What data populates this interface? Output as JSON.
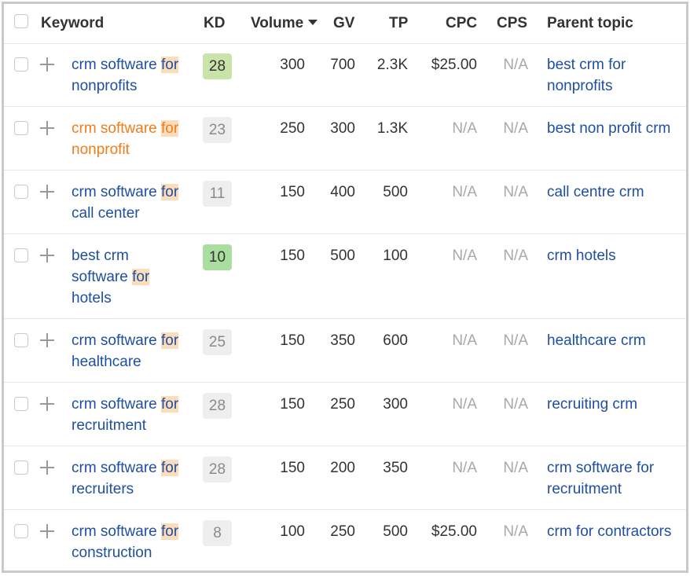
{
  "header": {
    "keyword": "Keyword",
    "kd": "KD",
    "volume": "Volume",
    "gv": "GV",
    "tp": "TP",
    "cpc": "CPC",
    "cps": "CPS",
    "parent_topic": "Parent topic"
  },
  "rows": [
    {
      "kw_pre": "crm software",
      "kw_hl": "for",
      "kw_post": "nonprofits",
      "kd": "28",
      "volume": "300",
      "gv": "700",
      "tp": "2.3K",
      "cpc": "$25.00",
      "cps": "N/A",
      "parent": "best crm for nonprofits"
    },
    {
      "kw_pre": "crm software",
      "kw_hl": "for",
      "kw_post": "nonprofit",
      "kd": "23",
      "volume": "250",
      "gv": "300",
      "tp": "1.3K",
      "cpc": "N/A",
      "cps": "N/A",
      "parent": "best non profit crm"
    },
    {
      "kw_pre": "crm software",
      "kw_hl": "for",
      "kw_post": "call center",
      "kd": "11",
      "volume": "150",
      "gv": "400",
      "tp": "500",
      "cpc": "N/A",
      "cps": "N/A",
      "parent": "call centre crm"
    },
    {
      "kw_pre": "best crm software",
      "kw_hl": "for",
      "kw_post": "hotels",
      "kd": "10",
      "volume": "150",
      "gv": "500",
      "tp": "100",
      "cpc": "N/A",
      "cps": "N/A",
      "parent": "crm hotels"
    },
    {
      "kw_pre": "crm software",
      "kw_hl": "for",
      "kw_post": "healthcare",
      "kd": "25",
      "volume": "150",
      "gv": "350",
      "tp": "600",
      "cpc": "N/A",
      "cps": "N/A",
      "parent": "healthcare crm"
    },
    {
      "kw_pre": "crm software",
      "kw_hl": "for",
      "kw_post": "recruitment",
      "kd": "28",
      "volume": "150",
      "gv": "250",
      "tp": "300",
      "cpc": "N/A",
      "cps": "N/A",
      "parent": "recruiting crm"
    },
    {
      "kw_pre": "crm software",
      "kw_hl": "for",
      "kw_post": "recruiters",
      "kd": "28",
      "volume": "150",
      "gv": "200",
      "tp": "350",
      "cpc": "N/A",
      "cps": "N/A",
      "parent": "crm software for recruitment"
    },
    {
      "kw_pre": "crm software",
      "kw_hl": "for",
      "kw_post": "construction",
      "kd": "8",
      "volume": "100",
      "gv": "250",
      "tp": "500",
      "cpc": "$25.00",
      "cps": "N/A",
      "parent": "crm for contractors"
    }
  ],
  "colors": {
    "link": "#1f4fa0",
    "visited_link": "#f07d1b",
    "highlight": "#fbdcbb",
    "kd_light_green": "#c9e3a8",
    "kd_green": "#a9dea0",
    "kd_gray": "#eeeeee"
  },
  "icons": {
    "select_all": "checkbox-icon",
    "add": "plus-icon",
    "sort": "caret-down-icon"
  }
}
